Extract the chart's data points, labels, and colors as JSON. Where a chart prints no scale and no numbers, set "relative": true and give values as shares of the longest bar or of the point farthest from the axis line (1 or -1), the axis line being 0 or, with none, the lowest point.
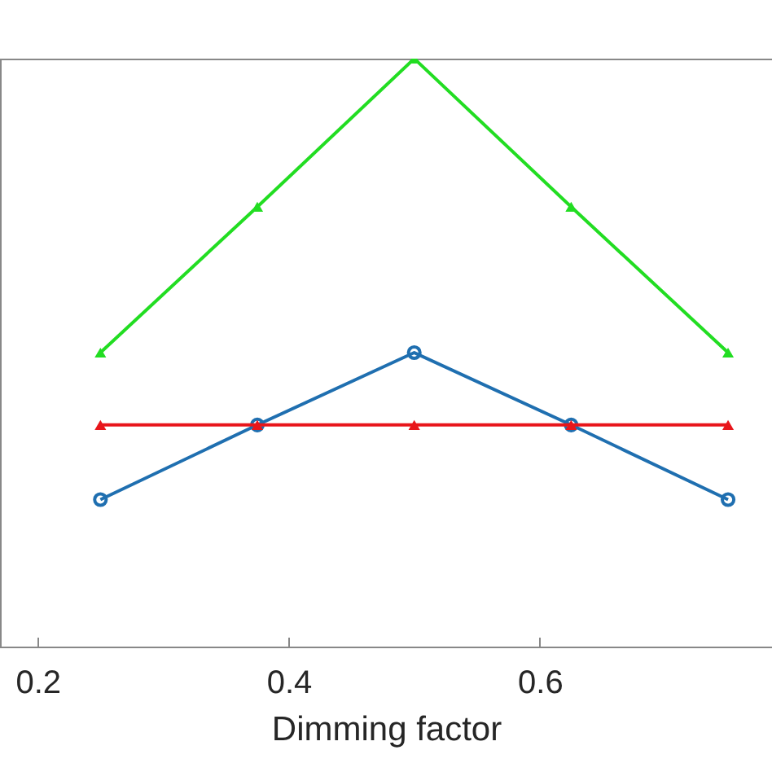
{
  "chart_data": {
    "type": "line",
    "relative": true,
    "xlabel": "Dimming factor",
    "xlim": [
      0.17,
      0.785
    ],
    "xticks": [
      0.2,
      0.4,
      0.6
    ],
    "grid": false,
    "series": [
      {
        "color": "#1f6fb0",
        "marker": "circle",
        "x": [
          0.25,
          0.375,
          0.5,
          0.625,
          0.75
        ],
        "values": [
          0.25,
          0.377,
          0.5,
          0.377,
          0.25
        ]
      },
      {
        "color": "#22dd22",
        "marker": "triangle",
        "x": [
          0.25,
          0.375,
          0.5,
          0.625,
          0.75
        ],
        "values": [
          0.5,
          0.748,
          1,
          0.748,
          0.5
        ]
      },
      {
        "color": "#e8161b",
        "marker": "triangle",
        "x": [
          0.25,
          0.375,
          0.5,
          0.625,
          0.75
        ],
        "values": [
          0.377,
          0.377,
          0.377,
          0.377,
          0.377
        ]
      }
    ]
  }
}
